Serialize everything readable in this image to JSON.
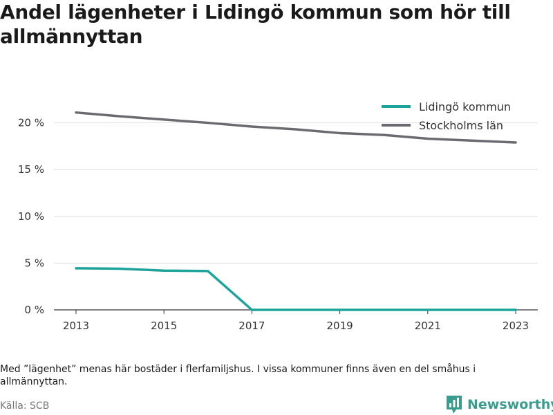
{
  "title": "Andel lägenheter i Lidingö kommun som hör till allmännyttan",
  "note": "Med ”lägenhet” menas här bostäder i flerfamiljshus. I vissa kommuner finns även en del småhus i allmännyttan.",
  "source": "Källa: SCB",
  "brand": {
    "name": "Newsworthy",
    "logo_icon": "bar-chart-logo-icon"
  },
  "chart_data": {
    "type": "line",
    "title": "Andel lägenheter i Lidingö kommun som hör till allmännyttan",
    "xlabel": "",
    "ylabel": "",
    "x": [
      2013,
      2014,
      2015,
      2016,
      2017,
      2018,
      2019,
      2020,
      2021,
      2022,
      2023
    ],
    "x_ticks": [
      "2013",
      "2015",
      "2017",
      "2019",
      "2021",
      "2023"
    ],
    "y_ticks": [
      0,
      5,
      10,
      15,
      20
    ],
    "y_tick_labels": [
      "0 %",
      "5 %",
      "10 %",
      "15 %",
      "20 %"
    ],
    "ylim": [
      0,
      23
    ],
    "grid": true,
    "legend": "top-right",
    "series": [
      {
        "name": "Lidingö kommun",
        "color": "#1ba39c",
        "values": [
          4.45,
          4.4,
          4.2,
          4.15,
          0,
          0,
          0,
          0,
          0,
          0,
          0
        ]
      },
      {
        "name": "Stockholms län",
        "color": "#6b6a70",
        "values": [
          21.1,
          20.7,
          20.35,
          20.0,
          19.6,
          19.3,
          18.9,
          18.7,
          18.3,
          18.1,
          17.9
        ]
      }
    ]
  }
}
